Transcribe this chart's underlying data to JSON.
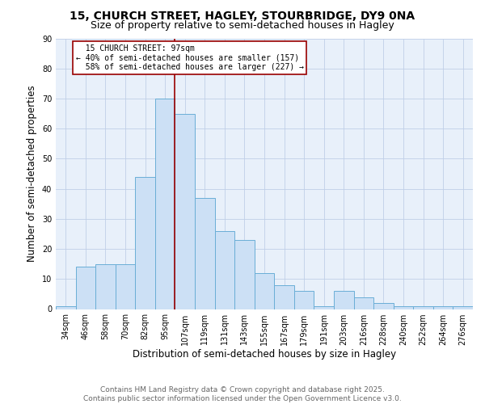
{
  "title": "15, CHURCH STREET, HAGLEY, STOURBRIDGE, DY9 0NA",
  "subtitle": "Size of property relative to semi-detached houses in Hagley",
  "xlabel": "Distribution of semi-detached houses by size in Hagley",
  "ylabel": "Number of semi-detached properties",
  "bin_labels": [
    "34sqm",
    "46sqm",
    "58sqm",
    "70sqm",
    "82sqm",
    "95sqm",
    "107sqm",
    "119sqm",
    "131sqm",
    "143sqm",
    "155sqm",
    "167sqm",
    "179sqm",
    "191sqm",
    "203sqm",
    "216sqm",
    "228sqm",
    "240sqm",
    "252sqm",
    "264sqm",
    "276sqm"
  ],
  "bar_values": [
    1,
    14,
    15,
    15,
    44,
    70,
    65,
    37,
    26,
    23,
    12,
    8,
    6,
    1,
    6,
    4,
    2,
    1,
    1,
    1,
    1
  ],
  "bar_color": "#cce0f5",
  "bar_edge_color": "#6aaed6",
  "property_label": "15 CHURCH STREET: 97sqm",
  "pct_smaller": 40,
  "pct_larger": 58,
  "count_smaller": 157,
  "count_larger": 227,
  "vline_color": "#990000",
  "vline_x": 5.5,
  "annotation_box_color": "#ffffff",
  "annotation_box_edge": "#990000",
  "ylim": [
    0,
    90
  ],
  "yticks": [
    0,
    10,
    20,
    30,
    40,
    50,
    60,
    70,
    80,
    90
  ],
  "footer_line1": "Contains HM Land Registry data © Crown copyright and database right 2025.",
  "footer_line2": "Contains public sector information licensed under the Open Government Licence v3.0.",
  "plot_bg_color": "#e8f0fa",
  "fig_bg_color": "#ffffff",
  "grid_color": "#c0cfe8",
  "title_fontsize": 10,
  "subtitle_fontsize": 9,
  "axis_label_fontsize": 8.5,
  "tick_fontsize": 7,
  "annotation_fontsize": 7,
  "footer_fontsize": 6.5
}
